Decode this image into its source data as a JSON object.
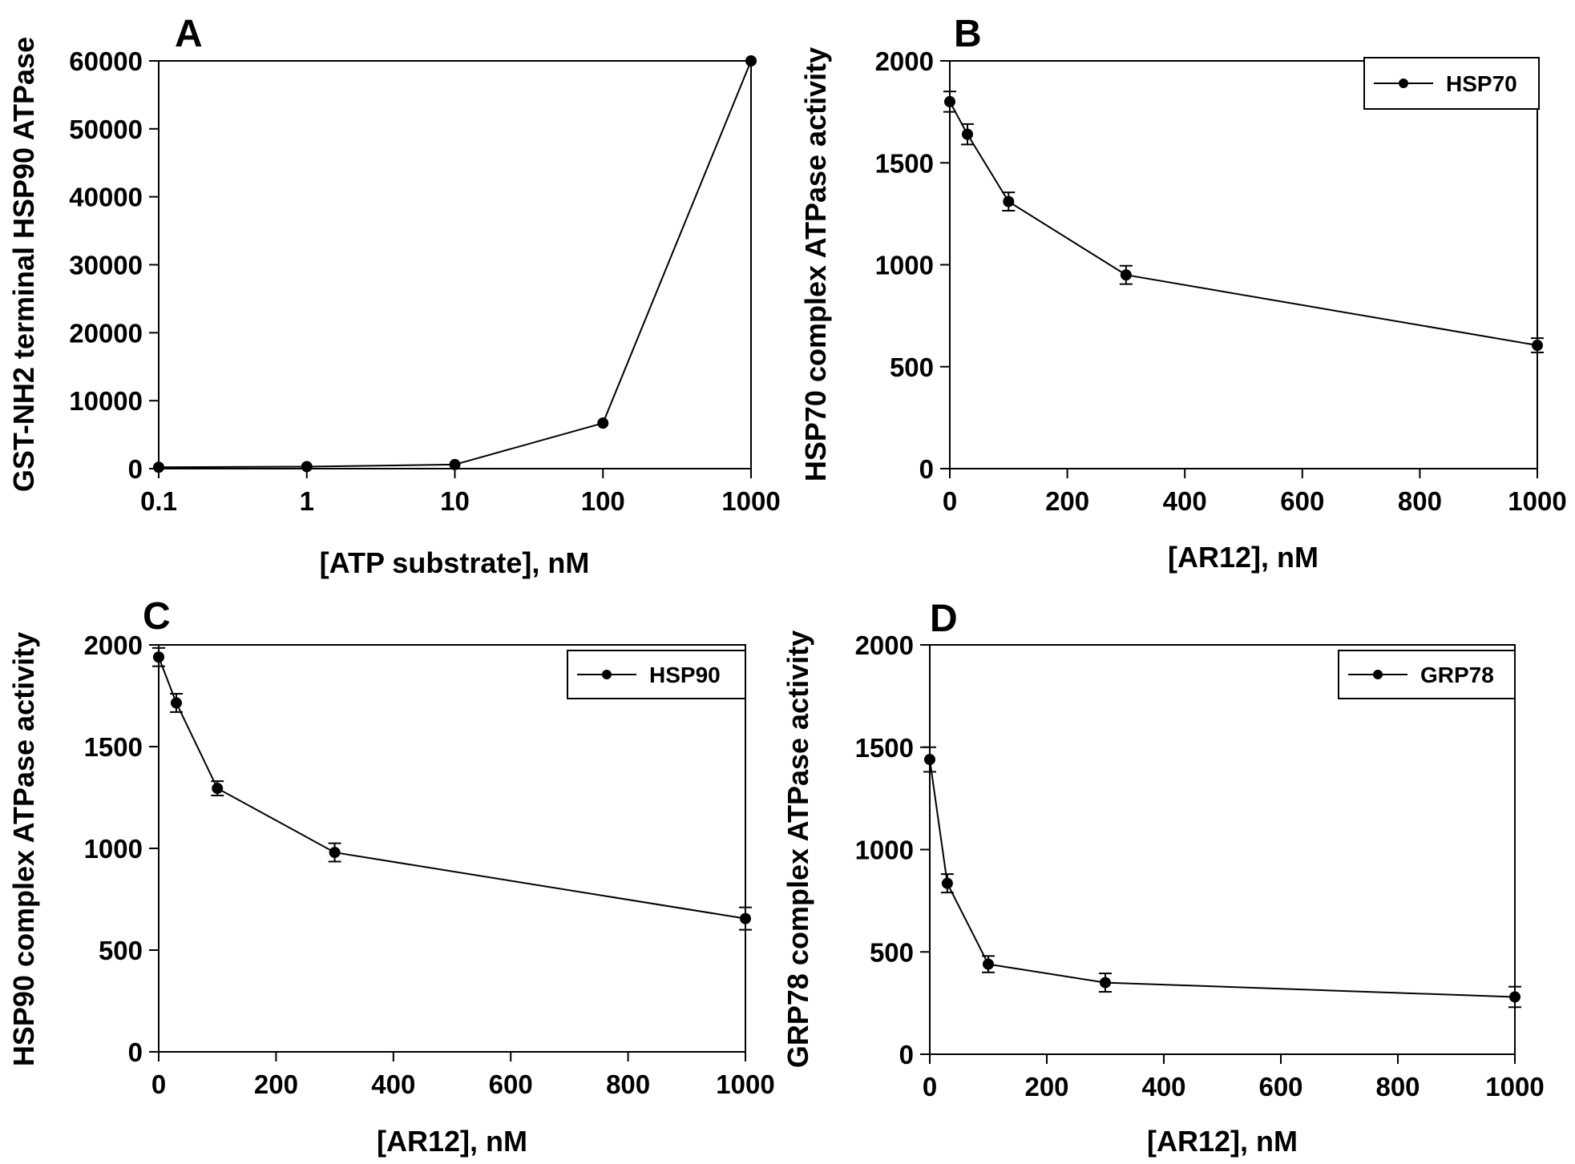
{
  "chart_data": [
    {
      "panel": "A",
      "type": "line",
      "xscale": "log",
      "xlabel": "[ATP substrate], nM",
      "ylabel": "GST-NH2 terminal HSP90 ATPase",
      "xlim": [
        0.1,
        1000
      ],
      "ylim": [
        0,
        60000
      ],
      "xticks": [
        "0.1",
        "1",
        "10",
        "100",
        "1000"
      ],
      "yticks": [
        "0",
        "10000",
        "20000",
        "30000",
        "40000",
        "50000",
        "60000"
      ],
      "series": [
        {
          "x": [
            0.1,
            1,
            10,
            100,
            1000
          ],
          "y": [
            200,
            300,
            600,
            6700,
            60000
          ]
        }
      ],
      "legend": null
    },
    {
      "panel": "B",
      "type": "line",
      "xlabel": "[AR12], nM",
      "ylabel": "HSP70 complex ATPase activity",
      "xlim": [
        0,
        1000
      ],
      "ylim": [
        0,
        2000
      ],
      "xticks": [
        "0",
        "200",
        "400",
        "600",
        "800",
        "1000"
      ],
      "yticks": [
        "0",
        "500",
        "1000",
        "1500",
        "2000"
      ],
      "series": [
        {
          "name": "HSP70",
          "x": [
            0,
            30,
            100,
            300,
            1000
          ],
          "y": [
            1800,
            1640,
            1310,
            950,
            605
          ],
          "err": [
            50,
            50,
            45,
            45,
            35
          ]
        }
      ],
      "legend": "top-right"
    },
    {
      "panel": "C",
      "type": "line",
      "xlabel": "[AR12], nM",
      "ylabel": "HSP90 complex ATPase activity",
      "xlim": [
        0,
        1000
      ],
      "ylim": [
        0,
        2000
      ],
      "xticks": [
        "0",
        "200",
        "400",
        "600",
        "800",
        "1000"
      ],
      "yticks": [
        "0",
        "500",
        "1000",
        "1500",
        "2000"
      ],
      "series": [
        {
          "name": "HSP90",
          "x": [
            0,
            30,
            100,
            300,
            1000
          ],
          "y": [
            1940,
            1715,
            1295,
            980,
            655
          ],
          "err": [
            45,
            45,
            35,
            45,
            55
          ]
        }
      ],
      "legend": "top-right"
    },
    {
      "panel": "D",
      "type": "line",
      "xlabel": "[AR12], nM",
      "ylabel": "GRP78 complex ATPase activity",
      "xlim": [
        0,
        1000
      ],
      "ylim": [
        0,
        2000
      ],
      "xticks": [
        "0",
        "200",
        "400",
        "600",
        "800",
        "1000"
      ],
      "yticks": [
        "0",
        "500",
        "1000",
        "1500",
        "2000"
      ],
      "series": [
        {
          "name": "GRP78",
          "x": [
            0,
            30,
            100,
            300,
            1000
          ],
          "y": [
            1440,
            835,
            440,
            350,
            280
          ],
          "err": [
            60,
            45,
            40,
            45,
            50
          ]
        }
      ],
      "legend": "top-right"
    }
  ]
}
